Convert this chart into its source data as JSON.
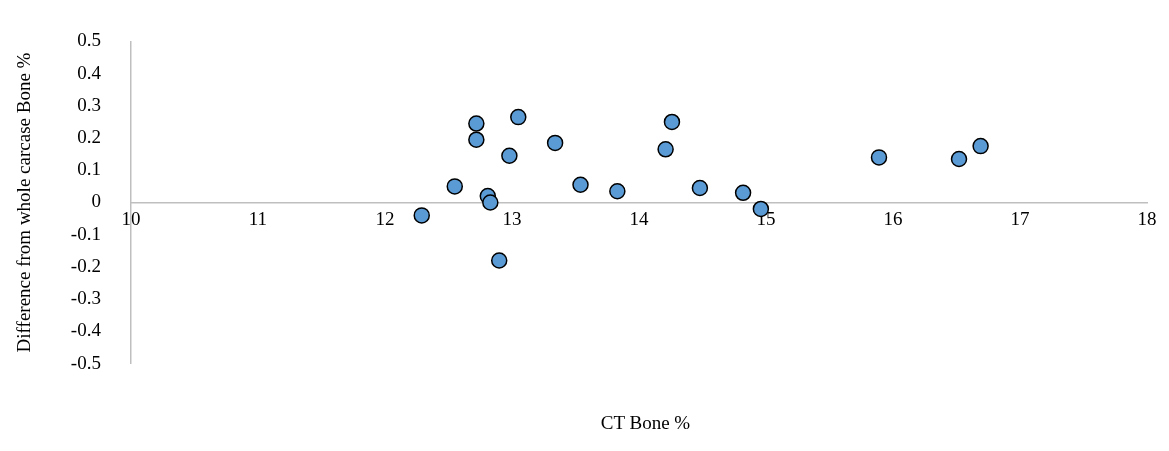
{
  "chart_data": {
    "type": "scatter",
    "xlabel": "CT Bone %",
    "ylabel": "Difference from whole carcase Bone %",
    "series": [
      {
        "color": "#5b9bd5",
        "x": [
          12.29,
          12.55,
          12.72,
          12.72,
          12.81,
          12.83,
          12.9,
          12.98,
          13.05,
          13.34,
          13.54,
          13.83,
          14.21,
          14.26,
          14.48,
          14.82,
          14.96,
          15.89,
          16.52,
          16.69
        ],
        "values": [
          -0.04,
          0.05,
          0.245,
          0.195,
          0.02,
          0,
          -0.18,
          0.145,
          0.265,
          0.185,
          0.055,
          0.035,
          0.165,
          0.25,
          0.045,
          0.03,
          -0.02,
          0.14,
          0.135,
          0.175
        ]
      }
    ],
    "xlim": [
      10,
      18
    ],
    "xticks": [
      10,
      11,
      12,
      13,
      14,
      15,
      16,
      17,
      18
    ],
    "ylim": [
      -0.5,
      0.5
    ],
    "yticks": [
      -0.5,
      -0.4,
      -0.3,
      -0.2,
      -0.1,
      0,
      0.1,
      0.2,
      0.3,
      0.4,
      0.5
    ],
    "grid": false,
    "legend": false,
    "marker": "circle"
  }
}
